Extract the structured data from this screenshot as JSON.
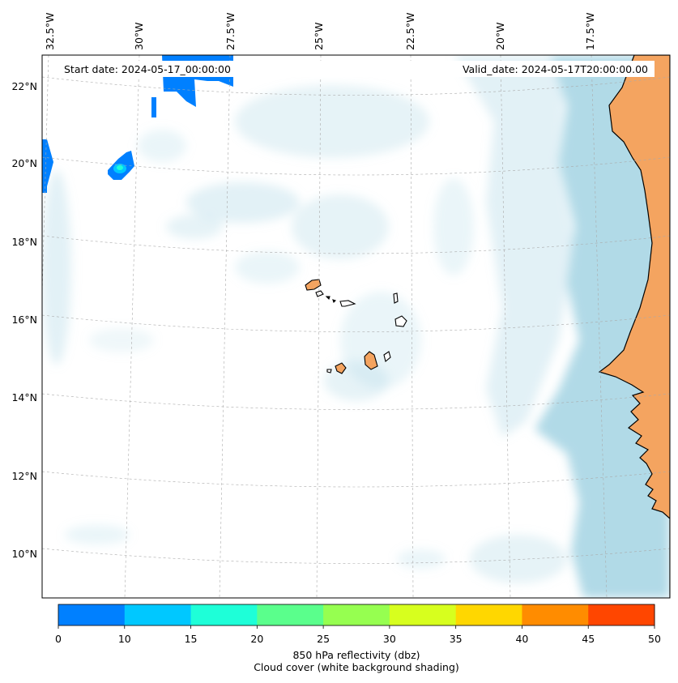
{
  "map": {
    "start_date_label": "Start date: 2024-05-17_00:00:00",
    "valid_date_label": "Valid_date: 2024-05-17T20:00:00.00",
    "lon_labels": [
      "32.5°W",
      "30°W",
      "27.5°W",
      "25°W",
      "22.5°W",
      "20°W",
      "17.5°W"
    ],
    "lat_labels": [
      "22°N",
      "20°N",
      "18°N",
      "16°N",
      "14°N",
      "12°N",
      "10°N"
    ]
  },
  "colorbar": {
    "ticks": [
      "0",
      "10",
      "15",
      "20",
      "25",
      "30",
      "35",
      "40",
      "45",
      "50"
    ],
    "colors": [
      "#0080ff",
      "#00c8ff",
      "#1effd8",
      "#5aff8c",
      "#96ff50",
      "#d7ff1e",
      "#ffd700",
      "#ff8c00",
      "#ff4600"
    ],
    "label_line1": "850 hPa reflectivity (dbz)",
    "label_line2": "Cloud cover (white background shading)"
  },
  "colors": {
    "land": "#f4a460",
    "cloud": "#add8e6",
    "sea": "#ffffff"
  }
}
